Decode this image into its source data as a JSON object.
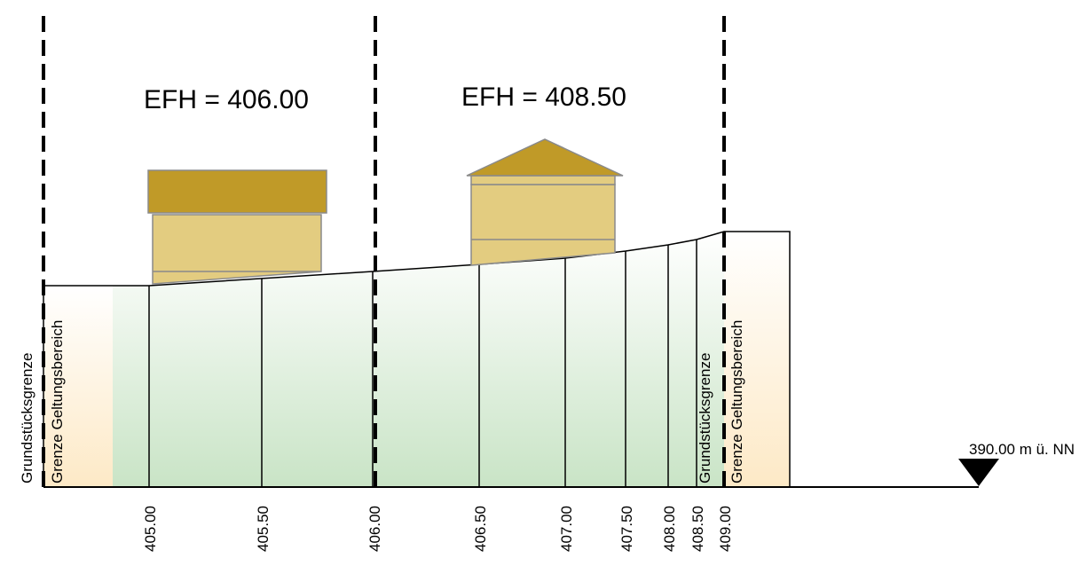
{
  "labels": {
    "efh_left": "EFH = 406.00",
    "efh_right": "EFH = 408.50",
    "boundary_plot_left": "Grundstücksgrenze",
    "boundary_scope_left": "Grenze Geltungsbereich",
    "boundary_plot_right": "Grundstücksgrenze",
    "boundary_scope_right": "Grenze Geltungsbereich",
    "reference_level": "390.00 m ü. NN"
  },
  "elevation_ticks": [
    "405.00",
    "405.50",
    "406.00",
    "406.50",
    "407.00",
    "407.50",
    "408.00",
    "408.50",
    "409.00"
  ],
  "colors": {
    "terrain_green": "#c9e4c6",
    "boundary_zone_orange": "#fde9c6",
    "house_wall": "#e3cc80",
    "house_roof": "#c09a28",
    "house_outline": "#8a8a8a"
  },
  "houses": [
    {
      "roof": "flat",
      "floors": 2
    },
    {
      "roof": "gable",
      "floors": 2
    }
  ]
}
